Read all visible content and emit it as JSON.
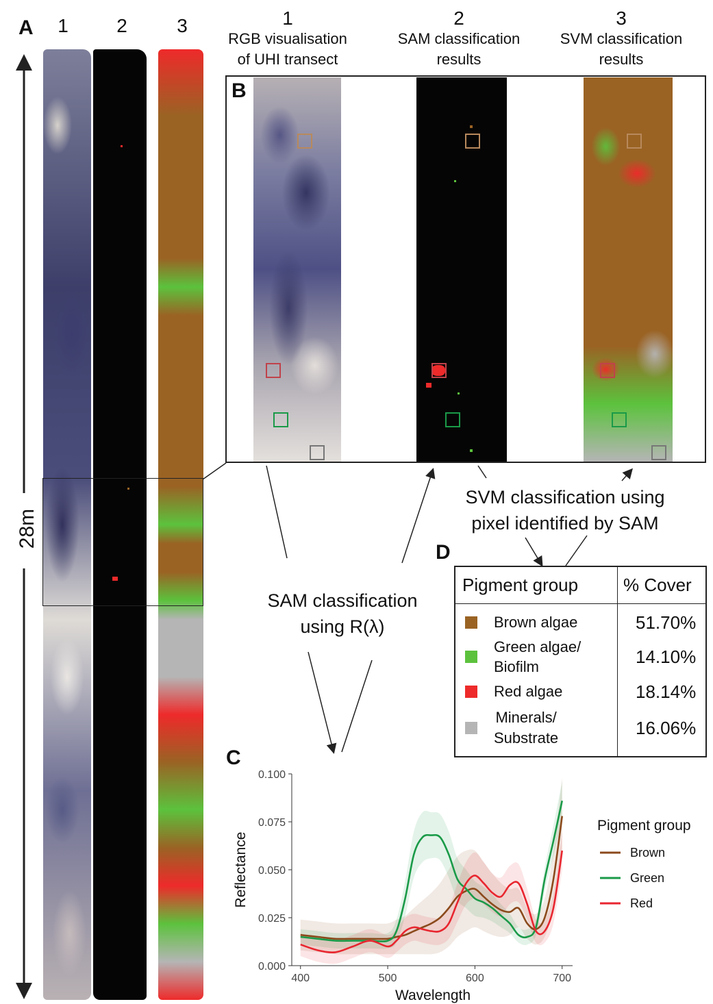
{
  "panels": {
    "a": "A",
    "b": "B",
    "c": "C",
    "d": "D"
  },
  "panel_a": {
    "columns": [
      "1",
      "2",
      "3"
    ],
    "scale_label": "28m"
  },
  "panel_b": {
    "headers": [
      {
        "num": "1",
        "line1": "RGB visualisation",
        "line2": "of UHI transect"
      },
      {
        "num": "2",
        "line1": "SAM classification",
        "line2": "results"
      },
      {
        "num": "3",
        "line1": "SVM classification",
        "line2": "results"
      }
    ]
  },
  "annotations": {
    "svm_line1": "SVM classification using",
    "svm_line2": "pixel identified by SAM",
    "sam_line1": "SAM classification",
    "sam_line2": "using R(λ)"
  },
  "cover_table": {
    "header": [
      "Pigment group",
      "% Cover"
    ],
    "rows": [
      {
        "label_line1": "Brown algae",
        "label_line2": "",
        "value": "51.70%",
        "color": "#9a6324"
      },
      {
        "label_line1": "Green algae/",
        "label_line2": "Biofilm",
        "value": "14.10%",
        "color": "#5cc23d"
      },
      {
        "label_line1": "Red algae",
        "label_line2": "",
        "value": "18.14%",
        "color": "#ee2a2a"
      },
      {
        "label_line1": "Minerals/",
        "label_line2": "Substrate",
        "value": "16.06%",
        "color": "#b5b5b5"
      }
    ]
  },
  "colors": {
    "brown": "#9a6324",
    "green": "#5cc23d",
    "red": "#ee2a2a",
    "grey": "#b5b5b5",
    "line_brown": "#8b4a1c",
    "line_green": "#1a9a48",
    "line_red": "#e8262f"
  },
  "chart_data": {
    "type": "line",
    "title": "",
    "xlabel": "Wavelength",
    "ylabel": "Reflectance",
    "xlim": [
      390,
      712
    ],
    "ylim": [
      0,
      0.1
    ],
    "x_ticks": [
      "400",
      "500",
      "600",
      "700"
    ],
    "y_ticks": [
      "0.000",
      "0.025",
      "0.050",
      "0.075",
      "0.100"
    ],
    "legend_title": "Pigment group",
    "legend_position": "right",
    "x": [
      400,
      420,
      440,
      460,
      480,
      500,
      510,
      520,
      530,
      540,
      550,
      560,
      570,
      580,
      590,
      600,
      610,
      620,
      630,
      640,
      650,
      660,
      670,
      680,
      690,
      700
    ],
    "series": [
      {
        "name": "Brown",
        "color": "#8b4a1c",
        "values": [
          0.016,
          0.015,
          0.014,
          0.014,
          0.014,
          0.014,
          0.015,
          0.016,
          0.018,
          0.02,
          0.022,
          0.025,
          0.03,
          0.036,
          0.039,
          0.04,
          0.036,
          0.032,
          0.029,
          0.028,
          0.03,
          0.022,
          0.019,
          0.025,
          0.045,
          0.078
        ],
        "band": [
          0.008,
          0.008,
          0.008,
          0.008,
          0.008,
          0.008,
          0.009,
          0.01,
          0.012,
          0.014,
          0.016,
          0.018,
          0.02,
          0.021,
          0.021,
          0.02,
          0.018,
          0.016,
          0.014,
          0.012,
          0.01,
          0.008,
          0.008,
          0.01,
          0.015,
          0.02
        ]
      },
      {
        "name": "Green",
        "color": "#1a9a48",
        "values": [
          0.015,
          0.014,
          0.013,
          0.013,
          0.013,
          0.013,
          0.018,
          0.035,
          0.058,
          0.067,
          0.068,
          0.067,
          0.058,
          0.045,
          0.04,
          0.035,
          0.033,
          0.03,
          0.026,
          0.022,
          0.016,
          0.015,
          0.02,
          0.045,
          0.065,
          0.086
        ],
        "band": [
          0.004,
          0.004,
          0.004,
          0.004,
          0.004,
          0.004,
          0.006,
          0.009,
          0.012,
          0.013,
          0.012,
          0.012,
          0.012,
          0.011,
          0.01,
          0.009,
          0.008,
          0.007,
          0.006,
          0.005,
          0.004,
          0.004,
          0.004,
          0.006,
          0.008,
          0.01
        ]
      },
      {
        "name": "Red",
        "color": "#e8262f",
        "values": [
          0.011,
          0.008,
          0.007,
          0.01,
          0.013,
          0.01,
          0.013,
          0.018,
          0.02,
          0.019,
          0.018,
          0.018,
          0.022,
          0.033,
          0.043,
          0.047,
          0.043,
          0.038,
          0.036,
          0.042,
          0.043,
          0.032,
          0.018,
          0.018,
          0.03,
          0.06
        ],
        "band": [
          0.006,
          0.006,
          0.006,
          0.006,
          0.006,
          0.006,
          0.006,
          0.007,
          0.007,
          0.007,
          0.007,
          0.007,
          0.008,
          0.01,
          0.011,
          0.012,
          0.011,
          0.01,
          0.01,
          0.01,
          0.01,
          0.008,
          0.006,
          0.006,
          0.008,
          0.01
        ]
      }
    ]
  }
}
